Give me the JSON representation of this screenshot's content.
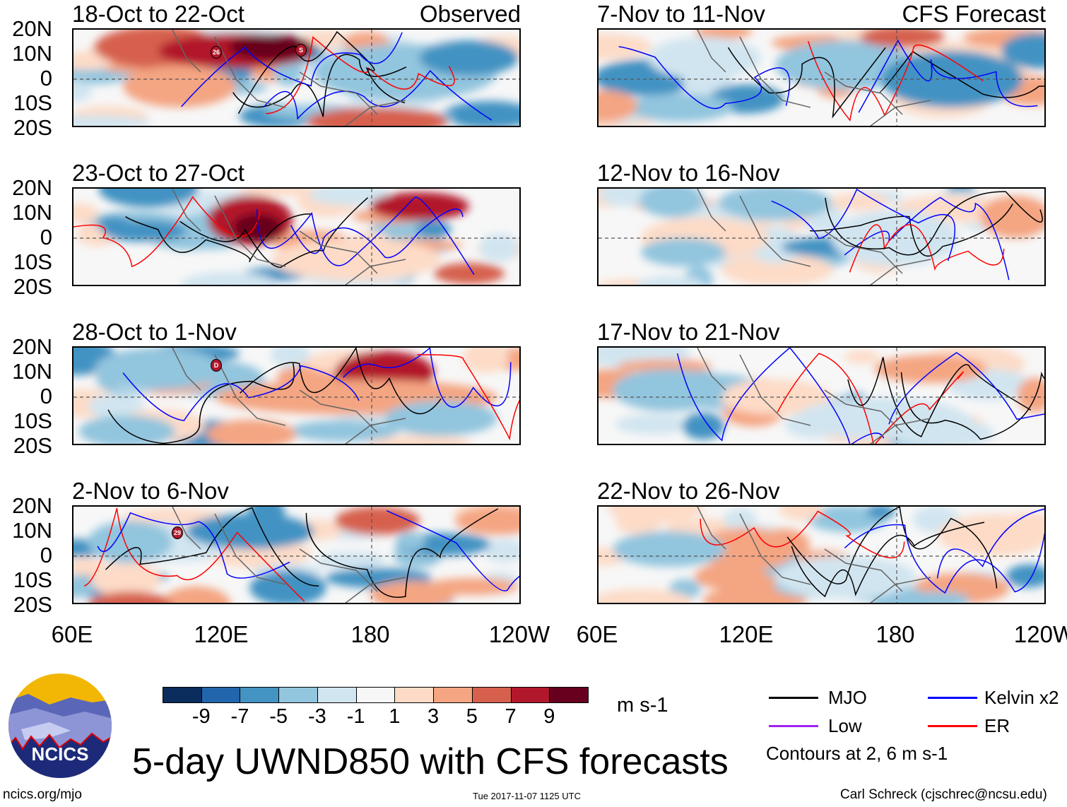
{
  "header": {
    "left_label": "Observed",
    "right_label": "CFS Forecast"
  },
  "panels": {
    "left": [
      "18-Oct to 22-Oct",
      "23-Oct to 27-Oct",
      "28-Oct to 1-Nov",
      "2-Nov to 6-Nov"
    ],
    "right": [
      "7-Nov to 11-Nov",
      "12-Nov to 16-Nov",
      "17-Nov to 21-Nov",
      "22-Nov to 26-Nov"
    ]
  },
  "axes": {
    "lat_labels": [
      "20N",
      "10N",
      "0",
      "10S",
      "20S"
    ],
    "lon_labels": [
      "60E",
      "120E",
      "180",
      "120W"
    ]
  },
  "storm_labels": [
    "26",
    "S",
    "D",
    "29"
  ],
  "colorbar": {
    "labels": [
      "-9",
      "-7",
      "-5",
      "-3",
      "-1",
      "1",
      "3",
      "5",
      "7",
      "9"
    ],
    "colors": [
      "#0b2d5e",
      "#2166ac",
      "#4393c3",
      "#92c5de",
      "#d1e5f0",
      "#f7f7f7",
      "#fddbc7",
      "#f4a582",
      "#d6604d",
      "#b2182b",
      "#67001f"
    ],
    "units": "m s-1"
  },
  "legend": {
    "items": [
      {
        "label": "MJO",
        "color": "#000000"
      },
      {
        "label": "Kelvin x2",
        "color": "#0000ff"
      },
      {
        "label": "Low",
        "color": "#a020f0"
      },
      {
        "label": "ER",
        "color": "#ff0000"
      }
    ],
    "note": "Contours at 2, 6 m s-1"
  },
  "logo": {
    "text": "NCICS"
  },
  "title": "5-day UWND850 with CFS forecasts",
  "footer": {
    "url": "ncics.org/mjo",
    "timestamp": "Tue 2017-11-07 1125 UTC",
    "author": "Carl Schreck (cjschrec@ncsu.edu)"
  }
}
